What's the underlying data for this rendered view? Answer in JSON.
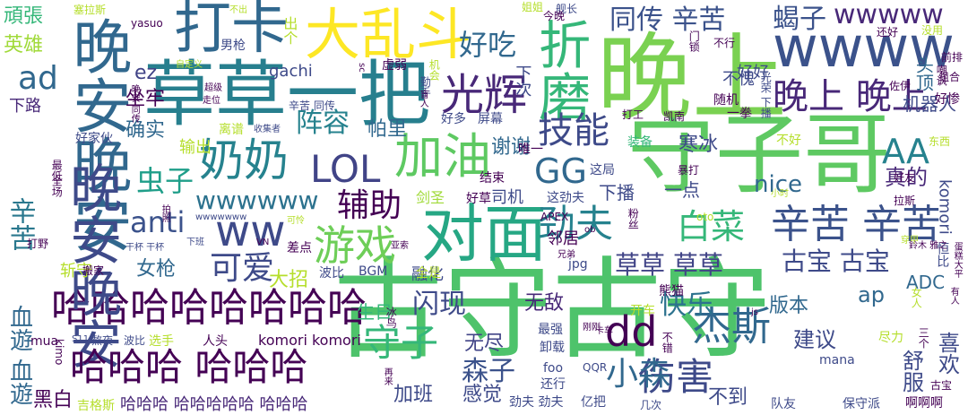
{
  "colors": {
    "background": "#ffffff",
    "dark_purple": "#44106e",
    "purple": "#482878",
    "indigo": "#3e4a89",
    "blue": "#31688e",
    "teal": "#26828e",
    "green_teal": "#1f9e89",
    "green": "#35b779",
    "light_green": "#6ece58",
    "lime": "#b5de2b",
    "yellow": "#fde725"
  },
  "words": [
    {
      "text": "古守古守"
    },
    {
      "text": "守子哥"
    },
    {
      "text": "晚上"
    },
    {
      "text": "草草一把"
    },
    {
      "text": "晚安晚安"
    },
    {
      "text": "wwww"
    },
    {
      "text": "哈哈哈哈哈哈哈哈"
    },
    {
      "text": "对面"
    },
    {
      "text": "晚安晚安"
    },
    {
      "text": "大乱斗"
    },
    {
      "text": "打卡"
    },
    {
      "text": "哈哈哈 哈哈哈"
    },
    {
      "text": "折磨"
    },
    {
      "text": "奶奶"
    },
    {
      "text": "加油"
    },
    {
      "text": "辛苦 辛苦"
    },
    {
      "text": "LOL"
    },
    {
      "text": "游戏"
    },
    {
      "text": "光辉"
    },
    {
      "text": "ww"
    },
    {
      "text": "劲夫"
    },
    {
      "text": "晚上 晚上"
    },
    {
      "text": "技能"
    },
    {
      "text": "杰斯"
    },
    {
      "text": "同传 辛苦"
    },
    {
      "text": "好吃"
    },
    {
      "text": "dd"
    },
    {
      "text": "伤害"
    },
    {
      "text": "白菜"
    },
    {
      "text": "守子"
    },
    {
      "text": "wwwww"
    },
    {
      "text": "GG"
    },
    {
      "text": "可爱"
    },
    {
      "text": "辅助"
    },
    {
      "text": "小森"
    },
    {
      "text": "ad"
    },
    {
      "text": "AA"
    },
    {
      "text": "wwwwww"
    },
    {
      "text": "anti"
    },
    {
      "text": "虫子"
    },
    {
      "text": "古宝 古宝"
    },
    {
      "text": "快乐"
    },
    {
      "text": "草草 草草"
    },
    {
      "text": "辛苦"
    },
    {
      "text": "血遊 血遊"
    },
    {
      "text": "阵容"
    },
    {
      "text": "蝎子"
    },
    {
      "text": "闪现"
    },
    {
      "text": "森子"
    },
    {
      "text": "真的"
    },
    {
      "text": "舒服"
    },
    {
      "text": "喜欢"
    },
    {
      "text": "建议"
    },
    {
      "text": "好吃"
    },
    {
      "text": "头顶"
    },
    {
      "text": "恒比"
    },
    {
      "text": "komori"
    },
    {
      "text": "nice"
    },
    {
      "text": "ADC"
    },
    {
      "text": "ap"
    },
    {
      "text": "版本"
    },
    {
      "text": "谢谢"
    },
    {
      "text": "帕里"
    },
    {
      "text": "确实"
    },
    {
      "text": "坐牢"
    },
    {
      "text": "英雄"
    },
    {
      "text": "頑張"
    },
    {
      "text": "ez"
    },
    {
      "text": "gachi"
    },
    {
      "text": "女枪"
    },
    {
      "text": "大招"
    },
    {
      "text": "生日"
    },
    {
      "text": "无敌"
    },
    {
      "text": "无尽"
    },
    {
      "text": "感觉"
    },
    {
      "text": "加班"
    },
    {
      "text": "不到"
    },
    {
      "text": "黑白"
    },
    {
      "text": "好好"
    },
    {
      "text": "机器人"
    },
    {
      "text": "寒冰"
    },
    {
      "text": "一点"
    },
    {
      "text": "下播"
    },
    {
      "text": "司机"
    },
    {
      "text": "邻居"
    },
    {
      "text": "融化"
    },
    {
      "text": "哈哈哈 哈哈哈哈哈 哈哈哈"
    },
    {
      "text": "komori komori"
    },
    {
      "text": "输出"
    },
    {
      "text": "下路"
    },
    {
      "text": "斩守"
    },
    {
      "text": "男枪"
    },
    {
      "text": "不愧"
    },
    {
      "text": "随机"
    },
    {
      "text": "出个"
    },
    {
      "text": "虚弱"
    },
    {
      "text": "剑圣"
    },
    {
      "text": "这劲夫"
    },
    {
      "text": "好草"
    },
    {
      "text": "结束"
    },
    {
      "text": "这局"
    },
    {
      "text": "装备"
    },
    {
      "text": "暴打"
    },
    {
      "text": "不好"
    },
    {
      "text": "唯一"
    },
    {
      "text": "下次"
    },
    {
      "text": "辛苦 同传"
    },
    {
      "text": "好多"
    },
    {
      "text": "屏幕"
    },
    {
      "text": "收集者"
    },
    {
      "text": "离谱"
    },
    {
      "text": "好家伙"
    },
    {
      "text": "全场"
    },
    {
      "text": "最低"
    },
    {
      "text": "熬夜"
    },
    {
      "text": "波比"
    },
    {
      "text": "选手"
    },
    {
      "text": "人头"
    },
    {
      "text": "mua"
    },
    {
      "text": "kimo"
    },
    {
      "text": "吉格斯"
    },
    {
      "text": "差点"
    },
    {
      "text": "波比"
    },
    {
      "text": "BGM"
    },
    {
      "text": "全是"
    },
    {
      "text": "jpg"
    },
    {
      "text": "熊猫"
    },
    {
      "text": "开车"
    },
    {
      "text": "最强"
    },
    {
      "text": "卸载"
    },
    {
      "text": "还行"
    },
    {
      "text": "劲夫 劲夫"
    },
    {
      "text": "亿把"
    },
    {
      "text": "foo"
    },
    {
      "text": "QQR"
    },
    {
      "text": "几次"
    },
    {
      "text": "队友"
    },
    {
      "text": "保守派"
    },
    {
      "text": "啊啊啊"
    },
    {
      "text": "mana"
    },
    {
      "text": "三个"
    },
    {
      "text": "尽力"
    },
    {
      "text": "古宝"
    },
    {
      "text": "oto"
    },
    {
      "text": "一拳"
    },
    {
      "text": "打工"
    },
    {
      "text": "凯南"
    },
    {
      "text": "光荣 下播"
    },
    {
      "text": "佐伊"
    },
    {
      "text": "东西"
    },
    {
      "text": "好友"
    },
    {
      "text": "拉斯"
    },
    {
      "text": "好惨"
    },
    {
      "text": "组合"
    },
    {
      "text": "前排"
    },
    {
      "text": "没用"
    },
    {
      "text": "还好"
    },
    {
      "text": "不行"
    },
    {
      "text": "门锁"
    },
    {
      "text": "舰长"
    },
    {
      "text": "姐姐"
    },
    {
      "text": "今晚"
    },
    {
      "text": "不出"
    },
    {
      "text": "塞拉斯"
    },
    {
      "text": "yasuo"
    },
    {
      "text": "自定义"
    },
    {
      "text": "超级"
    },
    {
      "text": "走位"
    },
    {
      "text": "晚安 同传"
    },
    {
      "text": "机会"
    },
    {
      "text": "勤手"
    },
    {
      "text": "盲人"
    },
    {
      "text": "sc"
    },
    {
      "text": "干杯 干杯"
    },
    {
      "text": "VN"
    },
    {
      "text": "下班"
    },
    {
      "text": "打野"
    },
    {
      "text": "搬家"
    },
    {
      "text": "拍照"
    },
    {
      "text": "wwwwwww"
    },
    {
      "text": "可怜"
    },
    {
      "text": "亚索"
    },
    {
      "text": "兄弟"
    },
    {
      "text": "APEX"
    },
    {
      "text": "ob"
    },
    {
      "text": "粉丝"
    },
    {
      "text": "小时"
    },
    {
      "text": "鈴木 雅之"
    },
    {
      "text": "穿甲"
    },
    {
      "text": "S11"
    },
    {
      "text": "冰鸟"
    },
    {
      "text": "卡车"
    },
    {
      "text": "刚刚"
    },
    {
      "text": "不错"
    },
    {
      "text": "js"
    },
    {
      "text": "女人"
    },
    {
      "text": "有人"
    },
    {
      "text": "蛋糕大平"
    },
    {
      "text": "再来"
    },
    {
      "text": "嘲讽"
    }
  ]
}
